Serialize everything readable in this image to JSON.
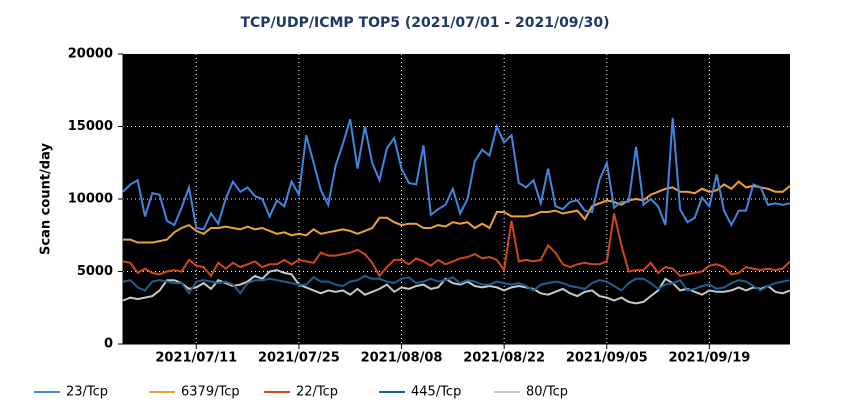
{
  "chart_data": {
    "type": "line",
    "title": "TCP/UDP/ICMP TOP5 (2021/07/01 - 2021/09/30)",
    "y_label": "Scan count/day",
    "categories": [
      null,
      null,
      null,
      null,
      null,
      null,
      null,
      null,
      null,
      null,
      "2021/07/11",
      null,
      null,
      null,
      null,
      null,
      null,
      null,
      null,
      null,
      null,
      null,
      null,
      null,
      "2021/07/25",
      null,
      null,
      null,
      null,
      null,
      null,
      null,
      null,
      null,
      null,
      null,
      null,
      null,
      "2021/08/08",
      null,
      null,
      null,
      null,
      null,
      null,
      null,
      null,
      null,
      null,
      null,
      null,
      null,
      "2021/08/22",
      null,
      null,
      null,
      null,
      null,
      null,
      null,
      null,
      null,
      null,
      null,
      null,
      null,
      "2021/09/05",
      null,
      null,
      null,
      null,
      null,
      null,
      null,
      null,
      null,
      null,
      null,
      null,
      null,
      "2021/09/19",
      null,
      null,
      null,
      null,
      null,
      null,
      null,
      null,
      null,
      null,
      null
    ],
    "ylim": [
      0,
      20000
    ],
    "yticks": [
      0,
      5000,
      10000,
      15000,
      20000
    ],
    "grid": true,
    "legend": "bottom",
    "series": [
      {
        "name": "23/Tcp",
        "color": "#3f87e0",
        "values": [
          10500,
          11000,
          11300,
          8800,
          10400,
          10300,
          8500,
          8200,
          9400,
          10800,
          8000,
          7900,
          9000,
          8300,
          10000,
          11200,
          10500,
          10800,
          10200,
          10000,
          8800,
          9900,
          9500,
          11200,
          10300,
          14400,
          12500,
          10600,
          9600,
          12300,
          13800,
          15500,
          12100,
          15000,
          12500,
          11300,
          13500,
          14200,
          12100,
          11100,
          11000,
          13700,
          8900,
          9300,
          9600,
          10700,
          9000,
          10000,
          12600,
          13400,
          13000,
          15000,
          13900,
          14400,
          11100,
          10800,
          11300,
          9700,
          12100,
          9500,
          9300,
          9800,
          9900,
          9200,
          9100,
          11300,
          12500,
          9400,
          9800,
          9800,
          13600,
          9600,
          10000,
          9500,
          8200,
          15600,
          9300,
          8400,
          8700,
          10100,
          9500,
          11700,
          9200,
          8200,
          9200,
          9200,
          11000,
          10800,
          9600,
          9700,
          9600,
          9700
        ]
      },
      {
        "name": "6379/Tcp",
        "color": "#f0a238",
        "values": [
          7200,
          7200,
          7000,
          7000,
          7000,
          7100,
          7200,
          7700,
          8000,
          8200,
          7800,
          7600,
          8000,
          8000,
          8100,
          8000,
          7900,
          8100,
          7900,
          8000,
          7800,
          7600,
          7700,
          7500,
          7600,
          7500,
          7900,
          7600,
          7700,
          7800,
          7900,
          7800,
          7600,
          7800,
          8000,
          8700,
          8700,
          8400,
          8200,
          8300,
          8300,
          8000,
          8000,
          8200,
          8100,
          8400,
          8300,
          8400,
          8000,
          8300,
          8000,
          9100,
          9100,
          8800,
          8800,
          8800,
          8900,
          9100,
          9100,
          9200,
          9000,
          9100,
          9200,
          8600,
          9500,
          9700,
          9900,
          9800,
          9600,
          9900,
          10000,
          9900,
          10300,
          10500,
          10700,
          10800,
          10500,
          10500,
          10400,
          10700,
          10500,
          10600,
          11000,
          10700,
          11200,
          10800,
          10900,
          10800,
          10700,
          10500,
          10500,
          10900
        ]
      },
      {
        "name": "22/Tcp",
        "color": "#d2471a",
        "values": [
          5700,
          5600,
          4900,
          5200,
          4900,
          4800,
          5000,
          5100,
          5000,
          5800,
          5400,
          5300,
          4700,
          5600,
          5200,
          5600,
          5300,
          5500,
          5700,
          5300,
          5500,
          5500,
          5800,
          5500,
          5800,
          5700,
          5600,
          6300,
          6100,
          6100,
          6200,
          6300,
          6500,
          6200,
          5600,
          4700,
          5300,
          5800,
          5800,
          5500,
          5900,
          5700,
          5400,
          5800,
          5500,
          5700,
          5900,
          6000,
          6200,
          5900,
          6000,
          5800,
          5100,
          8500,
          5700,
          5800,
          5700,
          5800,
          6800,
          6300,
          5500,
          5300,
          5500,
          5600,
          5500,
          5500,
          5700,
          9000,
          6800,
          5000,
          5100,
          5100,
          5600,
          4900,
          5300,
          5200,
          4700,
          4800,
          4900,
          5000,
          5400,
          5500,
          5300,
          4800,
          4900,
          5300,
          5200,
          5100,
          5200,
          5100,
          5200,
          5700
        ]
      },
      {
        "name": "445/Tcp",
        "color": "#1c5f8f",
        "values": [
          4300,
          4400,
          3900,
          3700,
          4300,
          4400,
          4300,
          4200,
          4200,
          3500,
          4300,
          4400,
          4300,
          4200,
          4300,
          4100,
          3500,
          4200,
          4400,
          4400,
          4500,
          4400,
          4300,
          4200,
          4100,
          4100,
          4600,
          4300,
          4300,
          4100,
          4000,
          4300,
          4400,
          4700,
          4500,
          4500,
          4300,
          4200,
          4500,
          4600,
          4200,
          4300,
          4500,
          4300,
          4400,
          4600,
          4200,
          4400,
          4300,
          4100,
          4100,
          4300,
          4200,
          4100,
          4200,
          4000,
          3700,
          4100,
          4200,
          4300,
          4200,
          4000,
          3900,
          3800,
          4200,
          4400,
          4300,
          4000,
          3700,
          4200,
          4500,
          4500,
          4200,
          3800,
          4100,
          4200,
          4400,
          3700,
          3800,
          4000,
          4100,
          3800,
          3900,
          4200,
          4400,
          4300,
          4000,
          3700,
          4000,
          4200,
          4300,
          4400
        ]
      },
      {
        "name": "80/Tcp",
        "color": "#c8c8c8",
        "values": [
          3000,
          3200,
          3100,
          3200,
          3300,
          3700,
          4400,
          4400,
          4200,
          3800,
          3900,
          4200,
          3800,
          4400,
          4200,
          4000,
          4100,
          4300,
          4700,
          4500,
          5000,
          5100,
          4900,
          4800,
          4100,
          3900,
          3700,
          3500,
          3700,
          3600,
          3700,
          3400,
          3800,
          3400,
          3600,
          3800,
          4100,
          3600,
          3900,
          3800,
          4000,
          4100,
          3800,
          3900,
          4500,
          4200,
          4100,
          4300,
          4000,
          3900,
          4000,
          3900,
          3700,
          3900,
          4000,
          3900,
          3800,
          3500,
          3400,
          3600,
          3800,
          3500,
          3300,
          3600,
          3700,
          3300,
          3200,
          3000,
          3200,
          2900,
          2800,
          2900,
          3300,
          3700,
          4500,
          4200,
          3700,
          3800,
          3600,
          3400,
          3700,
          3600,
          3600,
          3700,
          3900,
          3700,
          3900,
          3800,
          4000,
          3600,
          3500,
          3700
        ]
      }
    ]
  }
}
